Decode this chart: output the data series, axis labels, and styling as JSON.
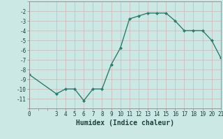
{
  "x": [
    0,
    3,
    4,
    5,
    6,
    7,
    8,
    9,
    10,
    11,
    12,
    13,
    14,
    15,
    16,
    17,
    18,
    19,
    20,
    21
  ],
  "y": [
    -8.5,
    -10.5,
    -10.0,
    -10.0,
    -11.2,
    -10.0,
    -10.0,
    -7.5,
    -5.8,
    -2.8,
    -2.5,
    -2.2,
    -2.2,
    -2.2,
    -3.0,
    -4.0,
    -4.0,
    -4.0,
    -5.0,
    -6.8
  ],
  "line_color": "#2d7d6e",
  "marker": "D",
  "marker_size": 2.0,
  "bg_color": "#cce8e4",
  "grid_color_major": "#c8b8b8",
  "grid_color_minor": "#ddd0d0",
  "xlabel": "Humidex (Indice chaleur)",
  "xlim": [
    0,
    21
  ],
  "ylim": [
    -11.5,
    -1.5
  ],
  "yticks": [
    -2,
    -3,
    -4,
    -5,
    -6,
    -7,
    -8,
    -9,
    -10,
    -11
  ],
  "xticks": [
    0,
    3,
    4,
    5,
    6,
    7,
    8,
    9,
    10,
    11,
    12,
    13,
    14,
    15,
    16,
    17,
    18,
    19,
    20,
    21
  ],
  "tick_fontsize": 5.5,
  "xlabel_fontsize": 7,
  "tick_color": "#1a4040",
  "spine_color": "#888888",
  "linewidth": 1.0
}
